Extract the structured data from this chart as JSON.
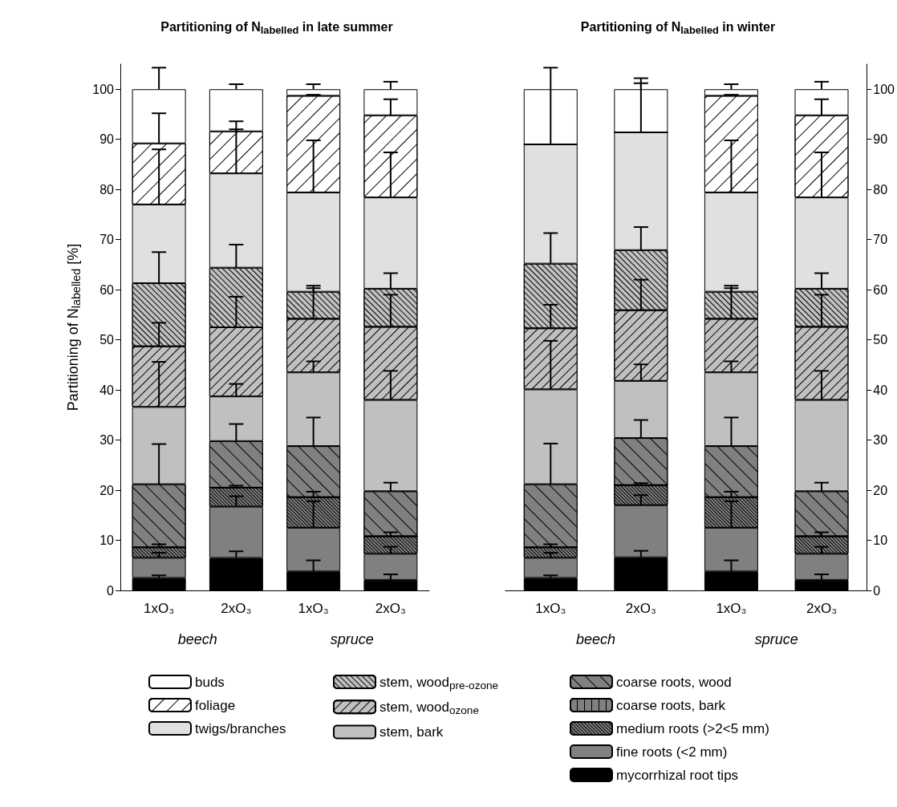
{
  "chart_data": [
    {
      "type": "bar",
      "stacked": true,
      "title": "Partitioning of N$_{labelled}$ in late summer",
      "ylabel": "Partitioning of N$_{labelled}$ [%]",
      "categories": [
        "1xO₃",
        "2xO₃",
        "1xO₃",
        "2xO₃"
      ],
      "annotations": [
        "beech",
        "spruce"
      ],
      "ylim": [
        0,
        105
      ],
      "yticks": [
        0,
        10,
        20,
        30,
        40,
        50,
        60,
        70,
        80,
        90,
        100
      ],
      "grid": false,
      "legend": "bottom",
      "series": [
        {
          "name": "mycorrhizal root tips",
          "color": "#000000",
          "values": [
            2.5,
            6.5,
            3.8,
            2.1
          ],
          "errors": [
            [
              2.5,
              3.0
            ],
            [
              6.5,
              7.8
            ],
            [
              3.8,
              6.0
            ],
            [
              2.1,
              3.2
            ]
          ]
        },
        {
          "name": "fine roots (<2 mm)",
          "color": "#808080",
          "values": [
            4.0,
            10.2,
            8.7,
            5.2
          ],
          "errors": [
            [
              6.5,
              7.5
            ],
            [
              16.7,
              18.8
            ],
            [
              12.5,
              17.8
            ],
            [
              7.3,
              8.7
            ]
          ]
        },
        {
          "name": "medium roots (>2<5 mm)",
          "color": "#808080",
          "values": [
            2.1,
            3.8,
            6.1,
            3.5
          ],
          "errors": [
            [
              8.6,
              9.2
            ],
            [
              20.5,
              20.9
            ],
            [
              18.6,
              19.7
            ],
            [
              10.8,
              11.6
            ]
          ]
        },
        {
          "name": "coarse roots, bark",
          "color": "#808080",
          "values": [
            0,
            0,
            0,
            0
          ]
        },
        {
          "name": "coarse roots, wood",
          "color": "#808080",
          "values": [
            12.6,
            9.3,
            10.2,
            9.0
          ],
          "errors": [
            [
              21.2,
              29.2
            ],
            [
              29.8,
              33.2
            ],
            [
              28.8,
              34.5
            ],
            [
              19.8,
              21.5
            ]
          ]
        },
        {
          "name": "stem, bark",
          "color": "#c0c0c0",
          "values": [
            15.4,
            8.9,
            14.7,
            18.2
          ],
          "errors": [
            [
              36.6,
              45.6
            ],
            [
              38.7,
              41.2
            ],
            [
              43.5,
              45.7
            ],
            [
              38.0,
              43.8
            ]
          ]
        },
        {
          "name": "stem, wood$_{ozone}$",
          "color": "#c0c0c0",
          "values": [
            12.1,
            13.8,
            10.7,
            14.6
          ],
          "errors": [
            [
              48.7,
              53.4
            ],
            [
              52.5,
              58.6
            ],
            [
              54.2,
              60.3
            ],
            [
              52.6,
              59.0
            ]
          ]
        },
        {
          "name": "stem, wood$_{pre-ozone}$",
          "color": "#c0c0c0",
          "values": [
            12.6,
            11.9,
            5.4,
            7.6
          ],
          "errors": [
            [
              61.3,
              67.5
            ],
            [
              64.4,
              69.0
            ],
            [
              59.6,
              60.8
            ],
            [
              60.2,
              63.3
            ]
          ]
        },
        {
          "name": "twigs/branches",
          "color": "#e0e0e0",
          "values": [
            15.7,
            18.8,
            19.8,
            18.2
          ],
          "errors": [
            [
              77.0,
              88.0
            ],
            [
              83.2,
              93.6
            ],
            [
              79.4,
              89.8
            ],
            [
              78.4,
              87.4
            ]
          ]
        },
        {
          "name": "foliage",
          "color": "#ffffff",
          "values": [
            12.2,
            8.4,
            19.3,
            16.4
          ],
          "errors": [
            [
              89.2,
              95.2
            ],
            [
              91.6,
              92.0
            ],
            [
              98.7,
              98.9
            ],
            [
              94.8,
              98.0
            ]
          ]
        },
        {
          "name": "buds",
          "color": "#ffffff",
          "values": [
            10.8,
            8.4,
            1.3,
            5.2
          ],
          "errors": [
            [
              100,
              104.3
            ],
            [
              100,
              101.0
            ],
            [
              100,
              101.0
            ],
            [
              100,
              101.5
            ]
          ]
        }
      ]
    },
    {
      "type": "bar",
      "stacked": true,
      "title": "Partitioning of N$_{labelled}$ in winter",
      "categories": [
        "1xO₃",
        "2xO₃",
        "1xO₃",
        "2xO₃"
      ],
      "annotations": [
        "beech",
        "spruce"
      ],
      "ylim": [
        0,
        105
      ],
      "yticks": [
        0,
        10,
        20,
        30,
        40,
        50,
        60,
        70,
        80,
        90,
        100
      ],
      "grid": false,
      "series": [
        {
          "color": "#000000",
          "values": [
            2.5,
            6.6,
            3.8,
            2.1
          ],
          "errors": [
            [
              2.5,
              3.0
            ],
            [
              6.6,
              7.9
            ],
            [
              3.8,
              6.0
            ],
            [
              2.1,
              3.2
            ]
          ]
        },
        {
          "color": "#808080",
          "values": [
            4.0,
            10.4,
            8.7,
            5.2
          ],
          "errors": [
            [
              6.5,
              7.5
            ],
            [
              17.0,
              19.0
            ],
            [
              12.5,
              17.8
            ],
            [
              7.3,
              8.7
            ]
          ]
        },
        {
          "color": "#808080",
          "values": [
            2.1,
            4.0,
            6.1,
            3.5
          ],
          "errors": [
            [
              8.6,
              9.2
            ],
            [
              21.0,
              21.4
            ],
            [
              18.6,
              19.7
            ],
            [
              10.8,
              11.6
            ]
          ]
        },
        {
          "color": "#808080",
          "values": [
            0,
            0,
            0,
            0
          ]
        },
        {
          "color": "#808080",
          "values": [
            12.6,
            9.4,
            10.2,
            9.0
          ],
          "errors": [
            [
              21.2,
              29.3
            ],
            [
              30.4,
              34.0
            ],
            [
              28.8,
              34.5
            ],
            [
              19.8,
              21.5
            ]
          ]
        },
        {
          "color": "#c0c0c0",
          "values": [
            18.9,
            11.4,
            14.7,
            18.2
          ],
          "errors": [
            [
              40.1,
              49.8
            ],
            [
              41.8,
              45.1
            ],
            [
              43.5,
              45.7
            ],
            [
              38.0,
              43.8
            ]
          ]
        },
        {
          "color": "#c0c0c0",
          "values": [
            12.2,
            14.1,
            10.7,
            14.6
          ],
          "errors": [
            [
              52.3,
              57.0
            ],
            [
              55.9,
              62.0
            ],
            [
              54.2,
              60.3
            ],
            [
              52.6,
              59.0
            ]
          ]
        },
        {
          "color": "#c0c0c0",
          "values": [
            12.9,
            12.0,
            5.4,
            7.6
          ],
          "errors": [
            [
              65.2,
              71.3
            ],
            [
              67.9,
              72.5
            ],
            [
              59.6,
              60.8
            ],
            [
              60.2,
              63.3
            ]
          ]
        },
        {
          "color": "#e0e0e0",
          "values": [
            23.8,
            23.5,
            19.8,
            18.2
          ],
          "errors": [
            [
              89.0,
              104.3
            ],
            [
              91.4,
              102.2
            ],
            [
              79.4,
              89.8
            ],
            [
              78.4,
              87.4
            ]
          ]
        },
        {
          "color": "#ffffff",
          "values": [
            0,
            0,
            19.3,
            16.4
          ],
          "errors": [
            null,
            null,
            [
              98.7,
              98.9
            ],
            [
              94.8,
              98.0
            ]
          ]
        },
        {
          "color": "#ffffff",
          "values": [
            11.0,
            8.6,
            1.3,
            5.2
          ],
          "errors": [
            null,
            [
              100,
              101.2
            ],
            [
              100,
              101.0
            ],
            [
              100,
              101.5
            ]
          ]
        }
      ]
    }
  ]
}
